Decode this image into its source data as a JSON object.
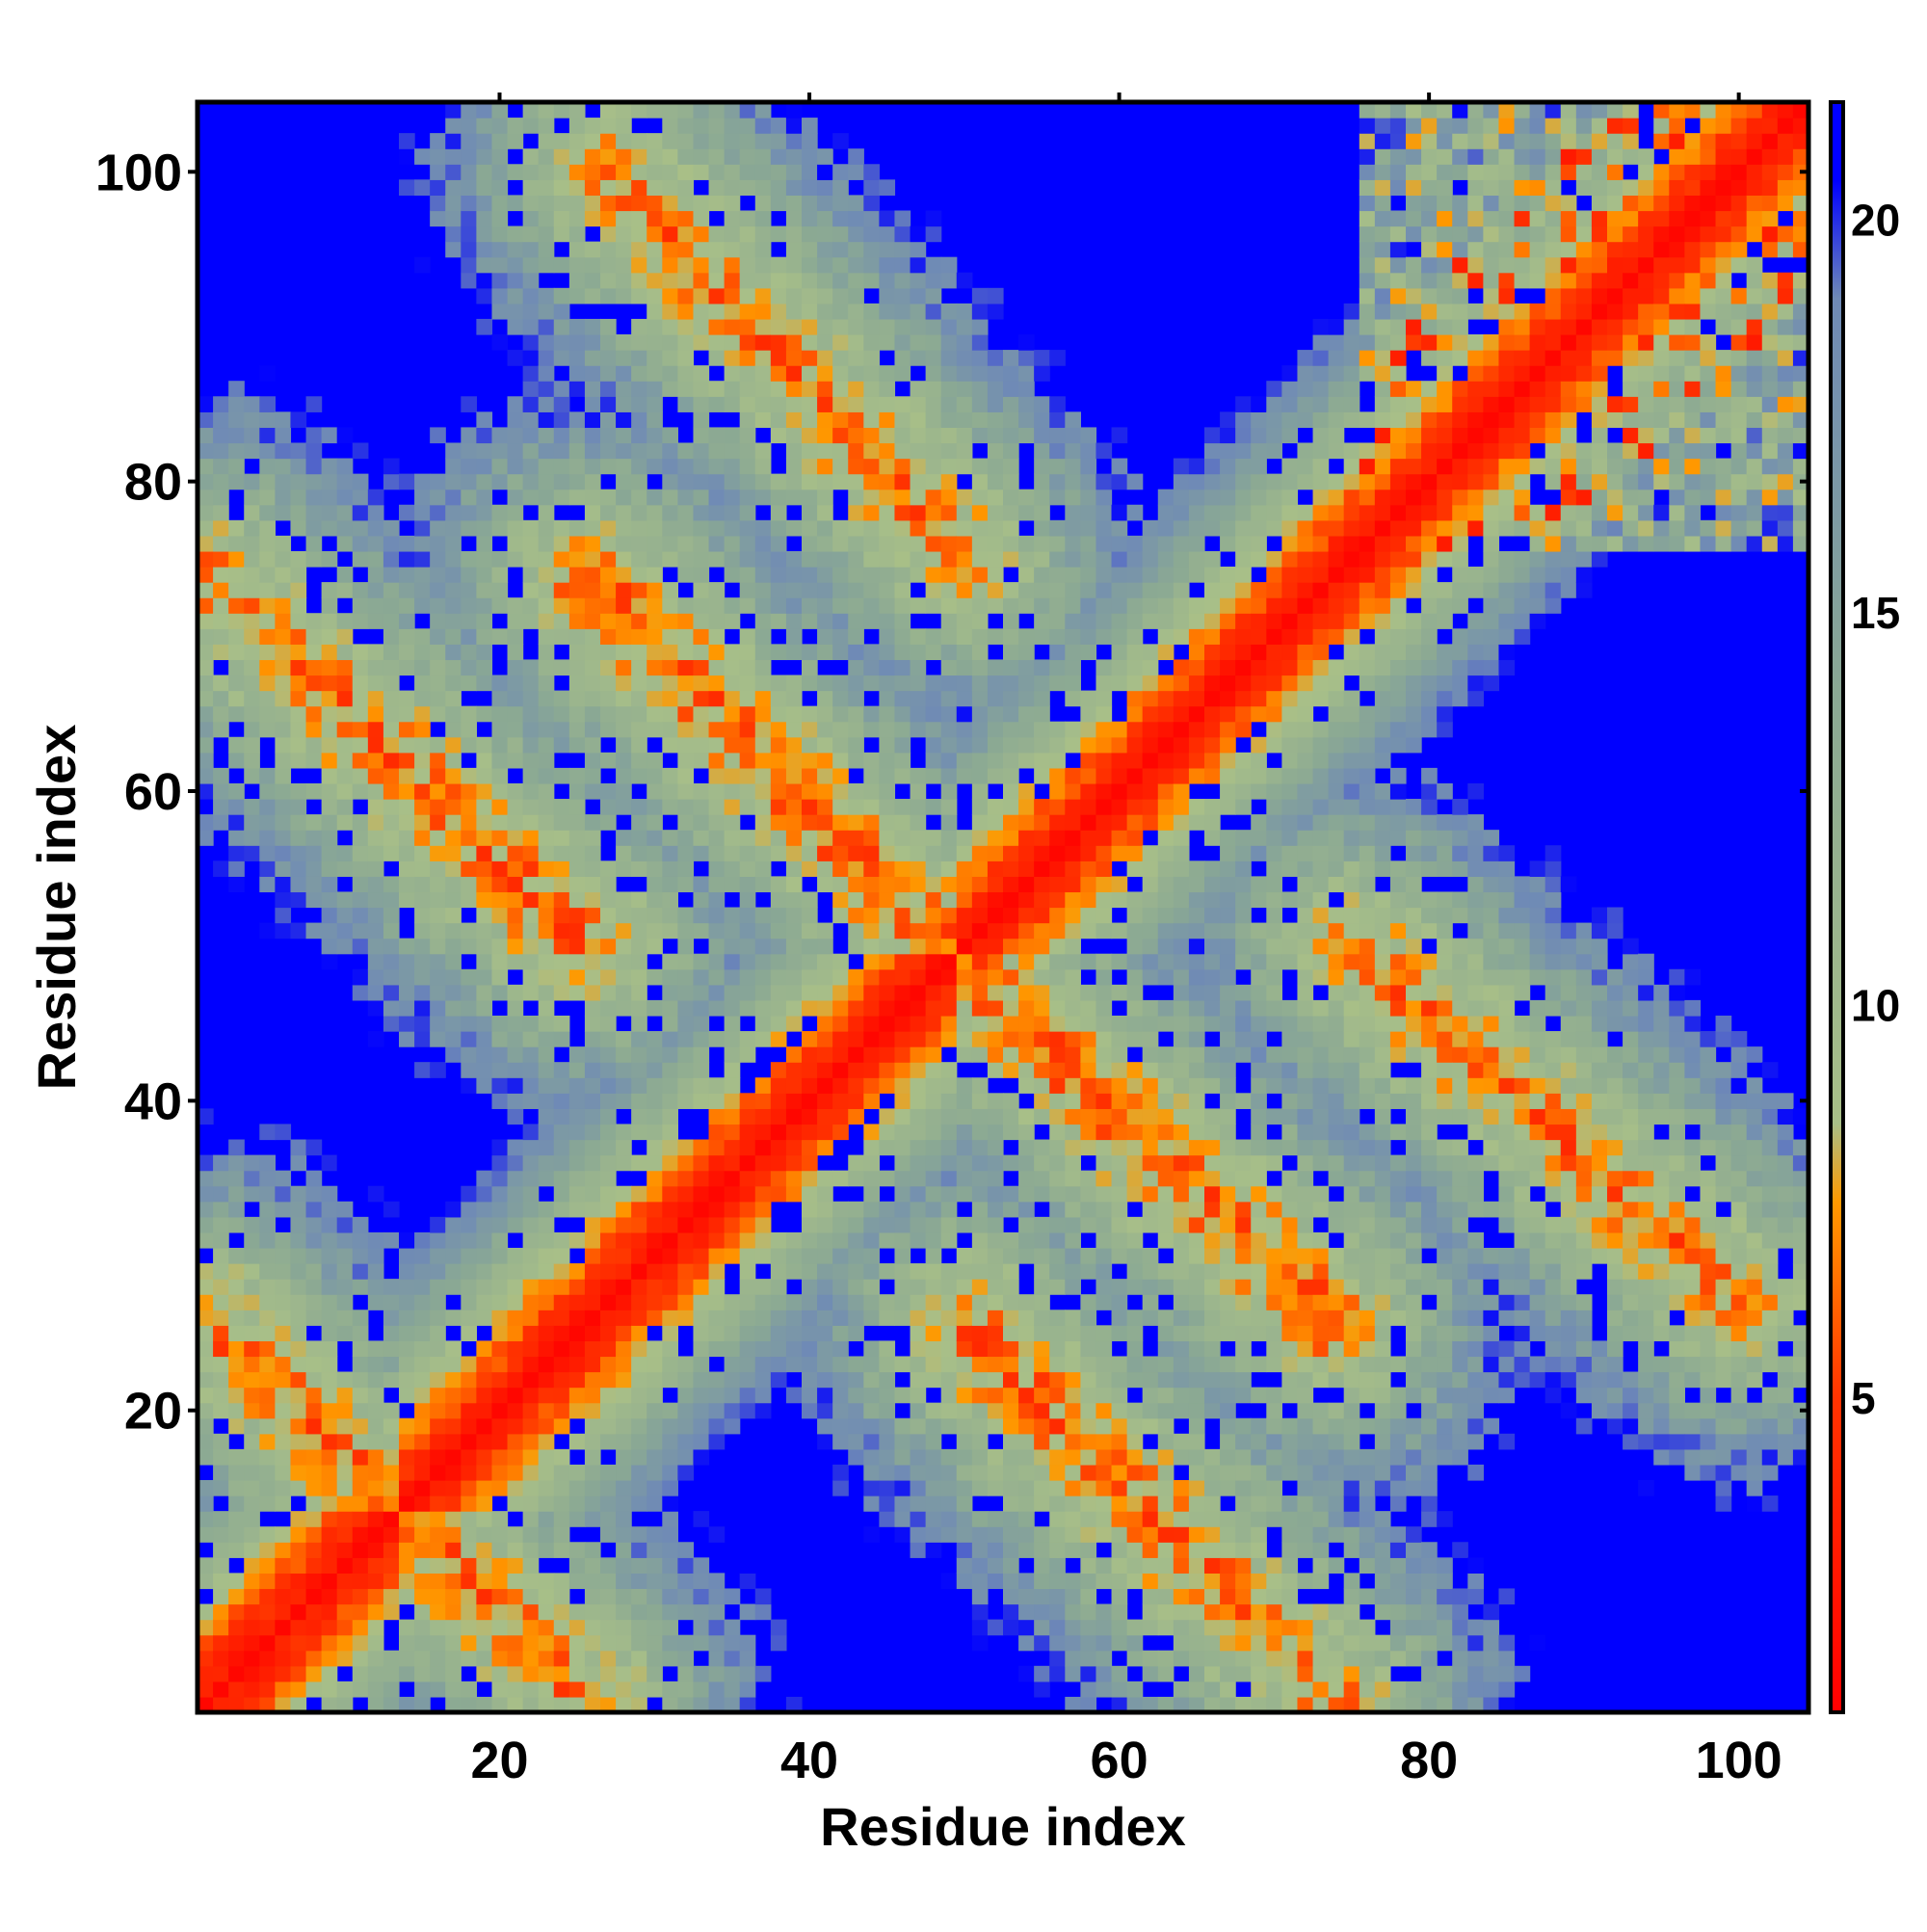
{
  "chart_data": {
    "type": "heatmap",
    "title": "",
    "xlabel": "Residue index",
    "ylabel": "Residue index",
    "xlim": [
      1,
      104
    ],
    "ylim": [
      1,
      104
    ],
    "x_ticks": [
      20,
      40,
      60,
      80,
      100
    ],
    "y_ticks": [
      20,
      40,
      60,
      80,
      100
    ],
    "x_tick_labels": [
      "20",
      "40",
      "60",
      "80",
      "100"
    ],
    "y_tick_labels": [
      "20",
      "40",
      "60",
      "80",
      "100"
    ],
    "matrix_size": 104,
    "value_description": "pairwise residue distance, symmetric about the diagonal",
    "colorbar": {
      "range": [
        1,
        21.5
      ],
      "ticks": [
        5,
        10,
        15,
        20
      ],
      "tick_labels": [
        "5",
        "10",
        "15",
        "20"
      ],
      "colors": [
        {
          "value": 1,
          "color": "#ff0000"
        },
        {
          "value": 5,
          "color": "#ff3300"
        },
        {
          "value": 7.5,
          "color": "#ff9900"
        },
        {
          "value": 8.5,
          "color": "#a8bf88"
        },
        {
          "value": 14,
          "color": "#8aa894"
        },
        {
          "value": 19,
          "color": "#6f8ab6"
        },
        {
          "value": 20.5,
          "color": "#0000ff"
        }
      ],
      "saturated_color": "#0000ff"
    },
    "structure": {
      "main_diagonal": {
        "from": [
          1,
          1
        ],
        "to": [
          104,
          104
        ]
      },
      "anti_diagonal_bands": [
        {
          "from": [
            1,
            74
          ],
          "to": [
            25,
            50
          ]
        },
        {
          "from": [
            26,
            74
          ],
          "to": [
            49,
            50
          ]
        },
        {
          "from": [
            49,
            49
          ],
          "to": [
            74,
            25
          ]
        },
        {
          "from": [
            50,
            26
          ],
          "to": [
            74,
            1
          ]
        },
        {
          "from": [
            1,
            26
          ],
          "to": [
            26,
            1
          ]
        },
        {
          "from": [
            27,
            100
          ],
          "to": [
            50,
            75
          ]
        }
      ],
      "upper_right_cluster": {
        "x": [
          76,
          104
        ],
        "y": [
          76,
          104
        ]
      }
    }
  }
}
